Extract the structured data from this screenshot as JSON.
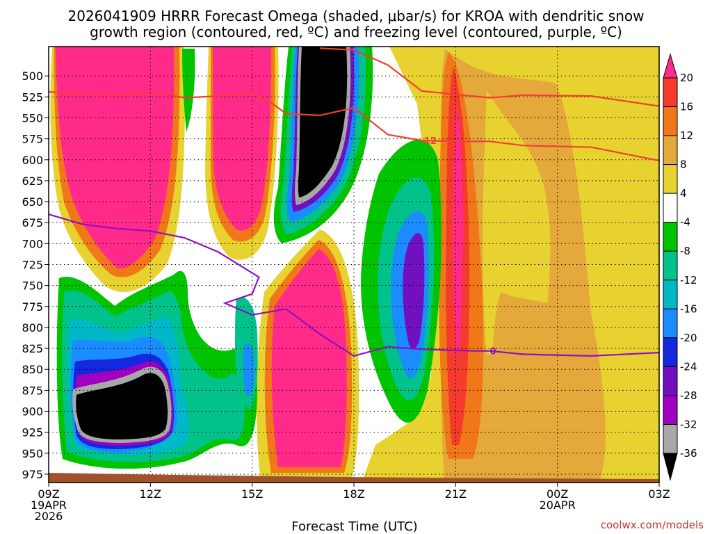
{
  "chart_data": {
    "type": "heatmap",
    "title": "2026041909 HRRR Forecast Omega (shaded, μbar/s) for KROA with dendritic snow",
    "subtitle": "growth region (contoured, red, ºC) and freezing level (contoured, purple, ºC)",
    "xlabel": "Forecast Time (UTC)",
    "ylabel": "",
    "credit": "coolwx.com/models",
    "x_ticks": [
      {
        "label": "09Z",
        "sub": [
          "19APR",
          "2026"
        ],
        "hour": 0
      },
      {
        "label": "12Z",
        "sub": [],
        "hour": 3
      },
      {
        "label": "15Z",
        "sub": [],
        "hour": 6
      },
      {
        "label": "18Z",
        "sub": [],
        "hour": 9
      },
      {
        "label": "21Z",
        "sub": [],
        "hour": 12
      },
      {
        "label": "00Z",
        "sub": [
          "20APR"
        ],
        "hour": 15
      },
      {
        "label": "03Z",
        "sub": [],
        "hour": 18
      }
    ],
    "xlim": [
      0,
      18
    ],
    "y_ticks": [
      500,
      525,
      550,
      575,
      600,
      625,
      650,
      675,
      700,
      725,
      750,
      775,
      800,
      825,
      850,
      875,
      900,
      925,
      950,
      975
    ],
    "ylim": [
      465,
      985
    ],
    "colorbar": {
      "levels": [
        "20",
        "16",
        "12",
        "8",
        "4",
        "-4",
        "-8",
        "-12",
        "-16",
        "-20",
        "-24",
        "-28",
        "-32",
        "-36"
      ],
      "colors": [
        "#ff2a8a",
        "#f53b2c",
        "#f07818",
        "#e5a83b",
        "#e8d22f",
        "#ffffff",
        "#00c400",
        "#00c28a",
        "#00b8c8",
        "#1a8cff",
        "#1428e0",
        "#7010c0",
        "#a000c0",
        "#a8a8a8",
        "#000000"
      ]
    },
    "series": [
      {
        "name": "-12 ºC isotherm (DGZ)",
        "color": "#f04030",
        "label": "-12",
        "points": [
          [
            0,
            519
          ],
          [
            1,
            522
          ],
          [
            2,
            523
          ],
          [
            3,
            519
          ],
          [
            4,
            526
          ],
          [
            5,
            524
          ],
          [
            6,
            521
          ],
          [
            6.5,
            530
          ],
          [
            7,
            545
          ],
          [
            8,
            547
          ],
          [
            9,
            538
          ],
          [
            10,
            570
          ],
          [
            11,
            577
          ],
          [
            12,
            578
          ],
          [
            13,
            578
          ],
          [
            14,
            583
          ],
          [
            16,
            585
          ],
          [
            18,
            601
          ]
        ]
      },
      {
        "name": "-12 ºC upper",
        "color": "#f04030",
        "label": "",
        "points": [
          [
            8,
            467
          ],
          [
            9,
            469
          ],
          [
            10,
            487
          ],
          [
            11,
            518
          ],
          [
            12,
            522
          ],
          [
            13,
            526
          ],
          [
            14,
            523
          ],
          [
            16,
            524
          ],
          [
            18,
            536
          ]
        ]
      },
      {
        "name": "0 ºC freezing level",
        "color": "#9010c0",
        "label": "0",
        "points": [
          [
            0,
            665
          ],
          [
            1,
            677
          ],
          [
            2,
            682
          ],
          [
            3,
            685
          ],
          [
            4,
            693
          ],
          [
            5,
            710
          ],
          [
            6.2,
            740
          ],
          [
            6,
            760
          ],
          [
            5.2,
            771
          ],
          [
            6,
            785
          ],
          [
            7,
            778
          ],
          [
            8,
            808
          ],
          [
            9,
            834
          ],
          [
            10,
            823
          ],
          [
            11,
            826
          ],
          [
            12.5,
            828
          ],
          [
            13,
            828
          ],
          [
            14,
            832
          ],
          [
            16,
            834
          ],
          [
            18,
            830
          ]
        ]
      }
    ]
  }
}
